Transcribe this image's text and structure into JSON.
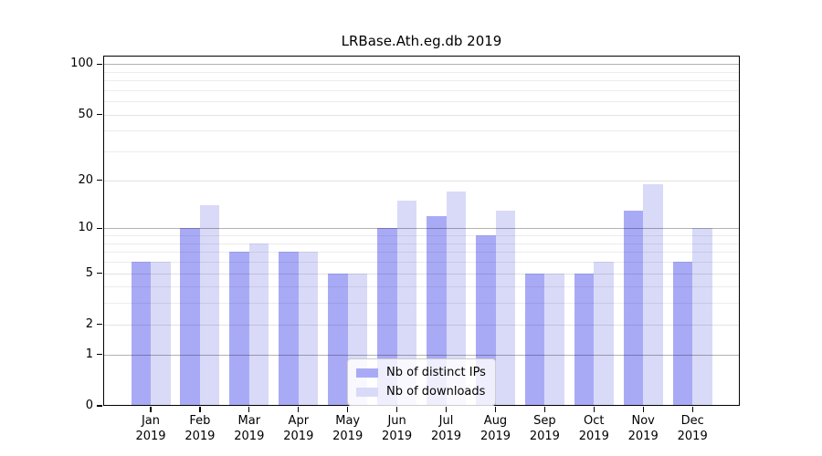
{
  "chart_data": {
    "type": "bar",
    "title": "LRBase.Ath.eg.db 2019",
    "categories": [
      "Jan",
      "Feb",
      "Mar",
      "Apr",
      "May",
      "Jun",
      "Jul",
      "Aug",
      "Sep",
      "Oct",
      "Nov",
      "Dec"
    ],
    "x_year_label": "2019",
    "series": [
      {
        "name": "Nb of distinct IPs",
        "color": "#a9aaf6",
        "values": [
          6,
          10,
          7,
          7,
          5,
          10,
          12,
          9,
          5,
          5,
          13,
          6
        ]
      },
      {
        "name": "Nb of downloads",
        "color": "#d9daf8",
        "values": [
          6,
          14,
          8,
          7,
          5,
          15,
          17,
          13,
          5,
          6,
          19,
          10
        ]
      }
    ],
    "y_axis": {
      "scale": "log10(value+1)",
      "ylim": [
        0,
        112
      ],
      "tick_labels": [
        0,
        1,
        2,
        5,
        10,
        20,
        50,
        100
      ],
      "decade_gridlines": [
        1,
        10,
        100
      ],
      "mid_gridlines": [
        2,
        5,
        20,
        50
      ],
      "minor_gridlines": [
        3,
        4,
        6,
        7,
        8,
        9,
        30,
        40,
        60,
        70,
        80,
        90
      ]
    },
    "legend_position": "lower center",
    "grid": "on"
  }
}
